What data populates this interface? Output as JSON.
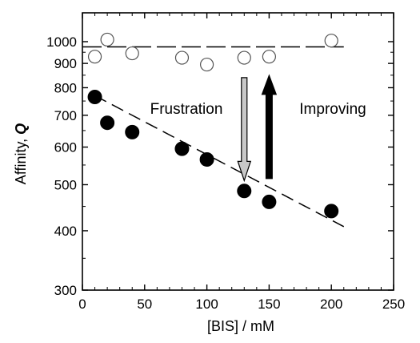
{
  "chart_data": {
    "type": "scatter",
    "xlabel": "[BIS] / mM",
    "ylabel_main": "Affinity, ",
    "ylabel_italic": "Q",
    "xscale": "linear",
    "yscale": "log",
    "xlim": [
      0,
      250
    ],
    "ylim": [
      300,
      1150
    ],
    "x_ticks": [
      0,
      50,
      100,
      150,
      200,
      250
    ],
    "x_tick_labels": [
      "0",
      "50",
      "100",
      "150",
      "200",
      "250"
    ],
    "y_ticks": [
      300,
      400,
      500,
      600,
      700,
      800,
      900,
      1000
    ],
    "y_tick_labels": [
      "300",
      "400",
      "500",
      "600",
      "700",
      "800",
      "900",
      "1000"
    ],
    "grid": false,
    "series": [
      {
        "marker": "open-circle",
        "x": [
          10,
          20,
          40,
          80,
          100,
          130,
          150,
          200
        ],
        "y": [
          930,
          1010,
          945,
          925,
          895,
          925,
          930,
          1005
        ]
      },
      {
        "marker": "filled-circle",
        "x": [
          10,
          20,
          40,
          80,
          100,
          130,
          150,
          200
        ],
        "y": [
          765,
          675,
          645,
          595,
          565,
          485,
          460,
          440
        ]
      }
    ],
    "fit_lines": [
      {
        "style": "long-dash",
        "x": [
          0,
          210
        ],
        "y": [
          975,
          975
        ]
      },
      {
        "style": "dash",
        "x": [
          10,
          210
        ],
        "y": [
          770,
          408
        ]
      }
    ],
    "annotations": [
      {
        "text": "Frustration",
        "arrow": "down",
        "arrow_color": "#c8c8c8",
        "arrow_x": 130,
        "arrow_from": 840,
        "arrow_to": 510
      },
      {
        "text": "Improving",
        "arrow": "up",
        "arrow_color": "#000000",
        "arrow_x": 150,
        "arrow_from": 515,
        "arrow_to": 850
      }
    ]
  }
}
